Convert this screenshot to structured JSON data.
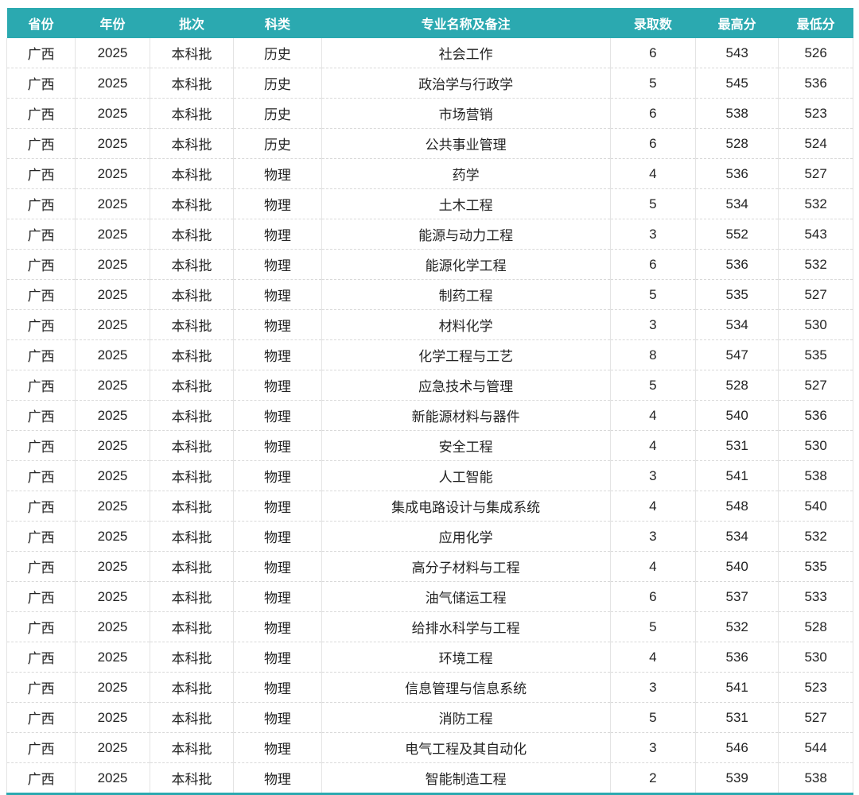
{
  "theme": {
    "header_bg": "#2BA9B0",
    "header_text": "#FFFFFF",
    "body_text": "#232323",
    "column_border": "#E4E4E4",
    "row_border_dashed": "#D9D9D9",
    "bottom_border": "#2BA9B0"
  },
  "table": {
    "columns": [
      "省份",
      "年份",
      "批次",
      "科类",
      "专业名称及备注",
      "录取数",
      "最高分",
      "最低分"
    ],
    "rows": [
      [
        "广西",
        "2025",
        "本科批",
        "历史",
        "社会工作",
        "6",
        "543",
        "526"
      ],
      [
        "广西",
        "2025",
        "本科批",
        "历史",
        "政治学与行政学",
        "5",
        "545",
        "536"
      ],
      [
        "广西",
        "2025",
        "本科批",
        "历史",
        "市场营销",
        "6",
        "538",
        "523"
      ],
      [
        "广西",
        "2025",
        "本科批",
        "历史",
        "公共事业管理",
        "6",
        "528",
        "524"
      ],
      [
        "广西",
        "2025",
        "本科批",
        "物理",
        "药学",
        "4",
        "536",
        "527"
      ],
      [
        "广西",
        "2025",
        "本科批",
        "物理",
        "土木工程",
        "5",
        "534",
        "532"
      ],
      [
        "广西",
        "2025",
        "本科批",
        "物理",
        "能源与动力工程",
        "3",
        "552",
        "543"
      ],
      [
        "广西",
        "2025",
        "本科批",
        "物理",
        "能源化学工程",
        "6",
        "536",
        "532"
      ],
      [
        "广西",
        "2025",
        "本科批",
        "物理",
        "制药工程",
        "5",
        "535",
        "527"
      ],
      [
        "广西",
        "2025",
        "本科批",
        "物理",
        "材料化学",
        "3",
        "534",
        "530"
      ],
      [
        "广西",
        "2025",
        "本科批",
        "物理",
        "化学工程与工艺",
        "8",
        "547",
        "535"
      ],
      [
        "广西",
        "2025",
        "本科批",
        "物理",
        "应急技术与管理",
        "5",
        "528",
        "527"
      ],
      [
        "广西",
        "2025",
        "本科批",
        "物理",
        "新能源材料与器件",
        "4",
        "540",
        "536"
      ],
      [
        "广西",
        "2025",
        "本科批",
        "物理",
        "安全工程",
        "4",
        "531",
        "530"
      ],
      [
        "广西",
        "2025",
        "本科批",
        "物理",
        "人工智能",
        "3",
        "541",
        "538"
      ],
      [
        "广西",
        "2025",
        "本科批",
        "物理",
        "集成电路设计与集成系统",
        "4",
        "548",
        "540"
      ],
      [
        "广西",
        "2025",
        "本科批",
        "物理",
        "应用化学",
        "3",
        "534",
        "532"
      ],
      [
        "广西",
        "2025",
        "本科批",
        "物理",
        "高分子材料与工程",
        "4",
        "540",
        "535"
      ],
      [
        "广西",
        "2025",
        "本科批",
        "物理",
        "油气储运工程",
        "6",
        "537",
        "533"
      ],
      [
        "广西",
        "2025",
        "本科批",
        "物理",
        "给排水科学与工程",
        "5",
        "532",
        "528"
      ],
      [
        "广西",
        "2025",
        "本科批",
        "物理",
        "环境工程",
        "4",
        "536",
        "530"
      ],
      [
        "广西",
        "2025",
        "本科批",
        "物理",
        "信息管理与信息系统",
        "3",
        "541",
        "523"
      ],
      [
        "广西",
        "2025",
        "本科批",
        "物理",
        "消防工程",
        "5",
        "531",
        "527"
      ],
      [
        "广西",
        "2025",
        "本科批",
        "物理",
        "电气工程及其自动化",
        "3",
        "546",
        "544"
      ],
      [
        "广西",
        "2025",
        "本科批",
        "物理",
        "智能制造工程",
        "2",
        "539",
        "538"
      ]
    ]
  },
  "chart_data": {
    "type": "table",
    "title": "",
    "columns": [
      "省份",
      "年份",
      "批次",
      "科类",
      "专业名称及备注",
      "录取数",
      "最高分",
      "最低分"
    ],
    "rows": [
      [
        "广西",
        2025,
        "本科批",
        "历史",
        "社会工作",
        6,
        543,
        526
      ],
      [
        "广西",
        2025,
        "本科批",
        "历史",
        "政治学与行政学",
        5,
        545,
        536
      ],
      [
        "广西",
        2025,
        "本科批",
        "历史",
        "市场营销",
        6,
        538,
        523
      ],
      [
        "广西",
        2025,
        "本科批",
        "历史",
        "公共事业管理",
        6,
        528,
        524
      ],
      [
        "广西",
        2025,
        "本科批",
        "物理",
        "药学",
        4,
        536,
        527
      ],
      [
        "广西",
        2025,
        "本科批",
        "物理",
        "土木工程",
        5,
        534,
        532
      ],
      [
        "广西",
        2025,
        "本科批",
        "物理",
        "能源与动力工程",
        3,
        552,
        543
      ],
      [
        "广西",
        2025,
        "本科批",
        "物理",
        "能源化学工程",
        6,
        536,
        532
      ],
      [
        "广西",
        2025,
        "本科批",
        "物理",
        "制药工程",
        5,
        535,
        527
      ],
      [
        "广西",
        2025,
        "本科批",
        "物理",
        "材料化学",
        3,
        534,
        530
      ],
      [
        "广西",
        2025,
        "本科批",
        "物理",
        "化学工程与工艺",
        8,
        547,
        535
      ],
      [
        "广西",
        2025,
        "本科批",
        "物理",
        "应急技术与管理",
        5,
        528,
        527
      ],
      [
        "广西",
        2025,
        "本科批",
        "物理",
        "新能源材料与器件",
        4,
        540,
        536
      ],
      [
        "广西",
        2025,
        "本科批",
        "物理",
        "安全工程",
        4,
        531,
        530
      ],
      [
        "广西",
        2025,
        "本科批",
        "物理",
        "人工智能",
        3,
        541,
        538
      ],
      [
        "广西",
        2025,
        "本科批",
        "物理",
        "集成电路设计与集成系统",
        4,
        548,
        540
      ],
      [
        "广西",
        2025,
        "本科批",
        "物理",
        "应用化学",
        3,
        534,
        532
      ],
      [
        "广西",
        2025,
        "本科批",
        "物理",
        "高分子材料与工程",
        4,
        540,
        535
      ],
      [
        "广西",
        2025,
        "本科批",
        "物理",
        "油气储运工程",
        6,
        537,
        533
      ],
      [
        "广西",
        2025,
        "本科批",
        "物理",
        "给排水科学与工程",
        5,
        532,
        528
      ],
      [
        "广西",
        2025,
        "本科批",
        "物理",
        "环境工程",
        4,
        536,
        530
      ],
      [
        "广西",
        2025,
        "本科批",
        "物理",
        "信息管理与信息系统",
        3,
        541,
        523
      ],
      [
        "广西",
        2025,
        "本科批",
        "物理",
        "消防工程",
        5,
        531,
        527
      ],
      [
        "广西",
        2025,
        "本科批",
        "物理",
        "电气工程及其自动化",
        3,
        546,
        544
      ],
      [
        "广西",
        2025,
        "本科批",
        "物理",
        "智能制造工程",
        2,
        539,
        538
      ]
    ]
  }
}
